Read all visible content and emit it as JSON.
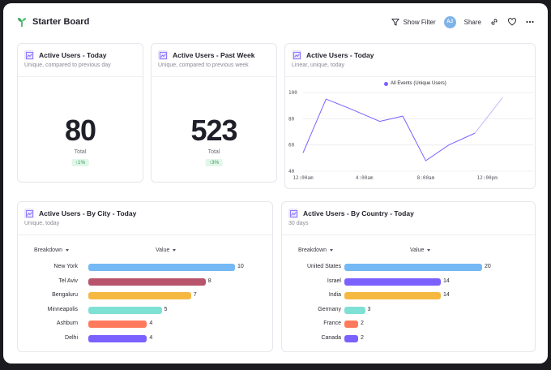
{
  "board": {
    "title": "Starter Board"
  },
  "toolbar": {
    "show_filter_label": "Show Filter",
    "avatar_initials": "AJ",
    "share_label": "Share"
  },
  "cards": {
    "today": {
      "title": "Active Users - Today",
      "subtitle": "Unique, compared to previous day",
      "value": "80",
      "label": "Total",
      "delta": "↑1%"
    },
    "week": {
      "title": "Active Users - Past Week",
      "subtitle": "Unique, compared to previous week",
      "value": "523",
      "label": "Total",
      "delta": "↑3%"
    },
    "line": {
      "title": "Active Users - Today",
      "subtitle": "Linear, unique, today"
    },
    "city": {
      "title": "Active Users - By City - Today",
      "subtitle": "Unique, today",
      "breakdown_label": "Breakdown",
      "value_label": "Value"
    },
    "country": {
      "title": "Active Users - By Country - Today",
      "subtitle": "30 days",
      "breakdown_label": "Breakdown",
      "value_label": "Value"
    }
  },
  "chart_data": [
    {
      "type": "line",
      "series": [
        {
          "name": "All Events (Unique Users)",
          "color": "#7b61ff",
          "x": [
            0,
            1.5,
            3,
            5,
            6.5,
            8,
            9.5,
            11.2,
            13
          ],
          "values": [
            54,
            95,
            88,
            78,
            82,
            48,
            60,
            69,
            96
          ]
        }
      ],
      "x_tick_labels": [
        "12:00am",
        "4:00am",
        "8:00am",
        "12:00pm"
      ],
      "x_ticks": [
        0,
        4,
        8,
        12
      ],
      "xlim": [
        0,
        15
      ],
      "y_ticks": [
        40,
        60,
        80,
        100
      ],
      "ylim": [
        40,
        100
      ],
      "legend": "top-center",
      "grid": true
    },
    {
      "type": "bar",
      "orientation": "horizontal",
      "categories": [
        "New York",
        "Tel Aviv",
        "Bengaluru",
        "Minneapolis",
        "Ashburn",
        "Delhi"
      ],
      "values": [
        10,
        8,
        7,
        5,
        4,
        4
      ],
      "colors": [
        "#74b9f4",
        "#b8546b",
        "#f5b942",
        "#7fe0d4",
        "#ff7a5c",
        "#7b61ff"
      ],
      "xlim": [
        0,
        10
      ]
    },
    {
      "type": "bar",
      "orientation": "horizontal",
      "categories": [
        "United States",
        "Israel",
        "India",
        "Germany",
        "France",
        "Canada"
      ],
      "values": [
        20,
        14,
        14,
        3,
        2,
        2
      ],
      "colors": [
        "#74b9f4",
        "#7b61ff",
        "#f5b942",
        "#7fe0d4",
        "#ff7a5c",
        "#7b61ff"
      ],
      "xlim": [
        0,
        20
      ]
    }
  ]
}
